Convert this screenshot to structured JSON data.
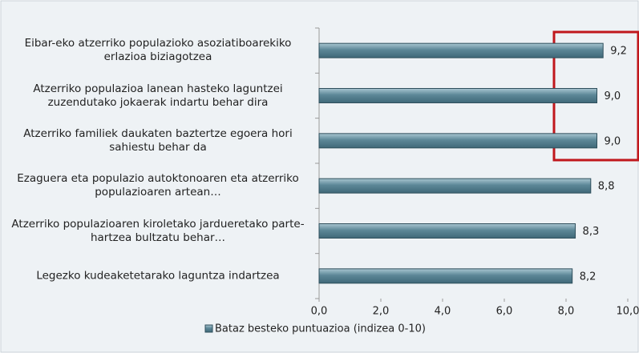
{
  "chart_data": {
    "type": "bar",
    "orientation": "horizontal",
    "categories": [
      "Eibar-eko atzerriko populazioko asoziatiboarekiko erlazioa biziagotzea",
      "Atzerriko populazioa lanean hasteko laguntzei zuzendutako jokaerak indartu behar dira",
      "Atzerriko familiek daukaten baztertze egoera hori sahiestu behar da",
      "Ezaguera eta populazio autoktonoaren eta atzerriko populazioaren artean…",
      "Atzerriko populazioaren kiroletako jardueretako parte-hartzea bultzatu behar…",
      "Legezko kudeaketetarako laguntza indartzea"
    ],
    "series": [
      {
        "name": "Bataz besteko puntuazioa (indizea 0-10)",
        "color": "#6f9fb0",
        "values": [
          9.2,
          9.0,
          9.0,
          8.8,
          8.3,
          8.2
        ],
        "value_labels": [
          "9,2",
          "9,0",
          "9,0",
          "8,8",
          "8,3",
          "8,2"
        ]
      }
    ],
    "xlim": [
      0,
      10
    ],
    "xticks": [
      {
        "value": 0,
        "label": "0,0"
      },
      {
        "value": 2,
        "label": "2,0"
      },
      {
        "value": 4,
        "label": "4,0"
      },
      {
        "value": 6,
        "label": "6,0"
      },
      {
        "value": 8,
        "label": "8,0"
      },
      {
        "value": 10,
        "label": "10,0"
      }
    ],
    "legend": "bottom"
  }
}
